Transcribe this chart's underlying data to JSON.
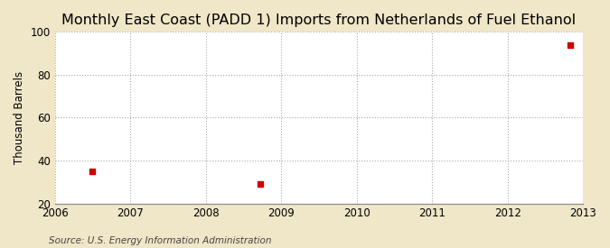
{
  "title": "Monthly East Coast (PADD 1) Imports from Netherlands of Fuel Ethanol",
  "ylabel": "Thousand Barrels",
  "source": "Source: U.S. Energy Information Administration",
  "fig_bg_color": "#F0E6C8",
  "plot_bg_color": "#FFFFFF",
  "x_data": [
    2006.5,
    2008.72,
    2012.83
  ],
  "y_data": [
    35,
    29,
    94
  ],
  "xlim": [
    2006,
    2013
  ],
  "ylim": [
    20,
    100
  ],
  "yticks": [
    20,
    40,
    60,
    80,
    100
  ],
  "xticks": [
    2006,
    2007,
    2008,
    2009,
    2010,
    2011,
    2012,
    2013
  ],
  "marker_color": "#CC0000",
  "marker": "s",
  "marker_size": 4,
  "title_fontsize": 11.5,
  "label_fontsize": 8.5,
  "tick_fontsize": 8.5,
  "source_fontsize": 7.5,
  "grid_color": "#AAAAAA",
  "grid_linestyle": ":",
  "grid_linewidth": 0.8
}
